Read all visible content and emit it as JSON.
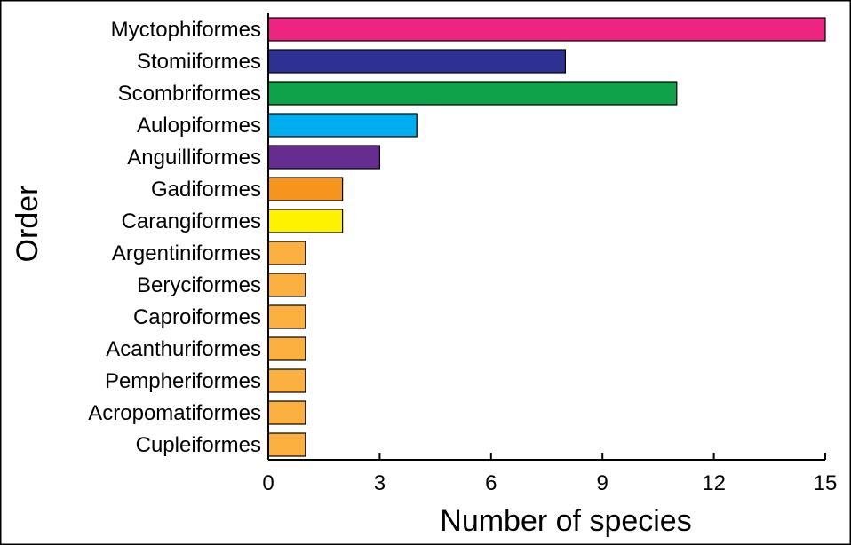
{
  "chart_data": {
    "type": "bar",
    "orientation": "horizontal",
    "categories": [
      "Myctophiformes",
      "Stomiiformes",
      "Scombriformes",
      "Aulopiformes",
      "Anguilliformes",
      "Gadiformes",
      "Carangiformes",
      "Argentiniformes",
      "Beryciformes",
      "Caproiformes",
      "Acanthuriformes",
      "Pempheriformes",
      "Acropomatiformes",
      "Cupleiformes"
    ],
    "values": [
      15,
      8,
      11,
      4,
      3,
      2,
      2,
      1,
      1,
      1,
      1,
      1,
      1,
      1
    ],
    "colors": [
      "#ee2580",
      "#2e3192",
      "#10a14b",
      "#00aeef",
      "#662d91",
      "#f7941d",
      "#fff200",
      "#fbb040",
      "#fbb040",
      "#fbb040",
      "#fbb040",
      "#fbb040",
      "#fbb040",
      "#fbb040"
    ],
    "xlabel": "Number of species",
    "ylabel": "Order",
    "xlim": [
      0,
      15
    ],
    "xticks": [
      "0",
      "3",
      "6",
      "9",
      "12",
      "15"
    ],
    "grid": false,
    "legend": "none"
  }
}
